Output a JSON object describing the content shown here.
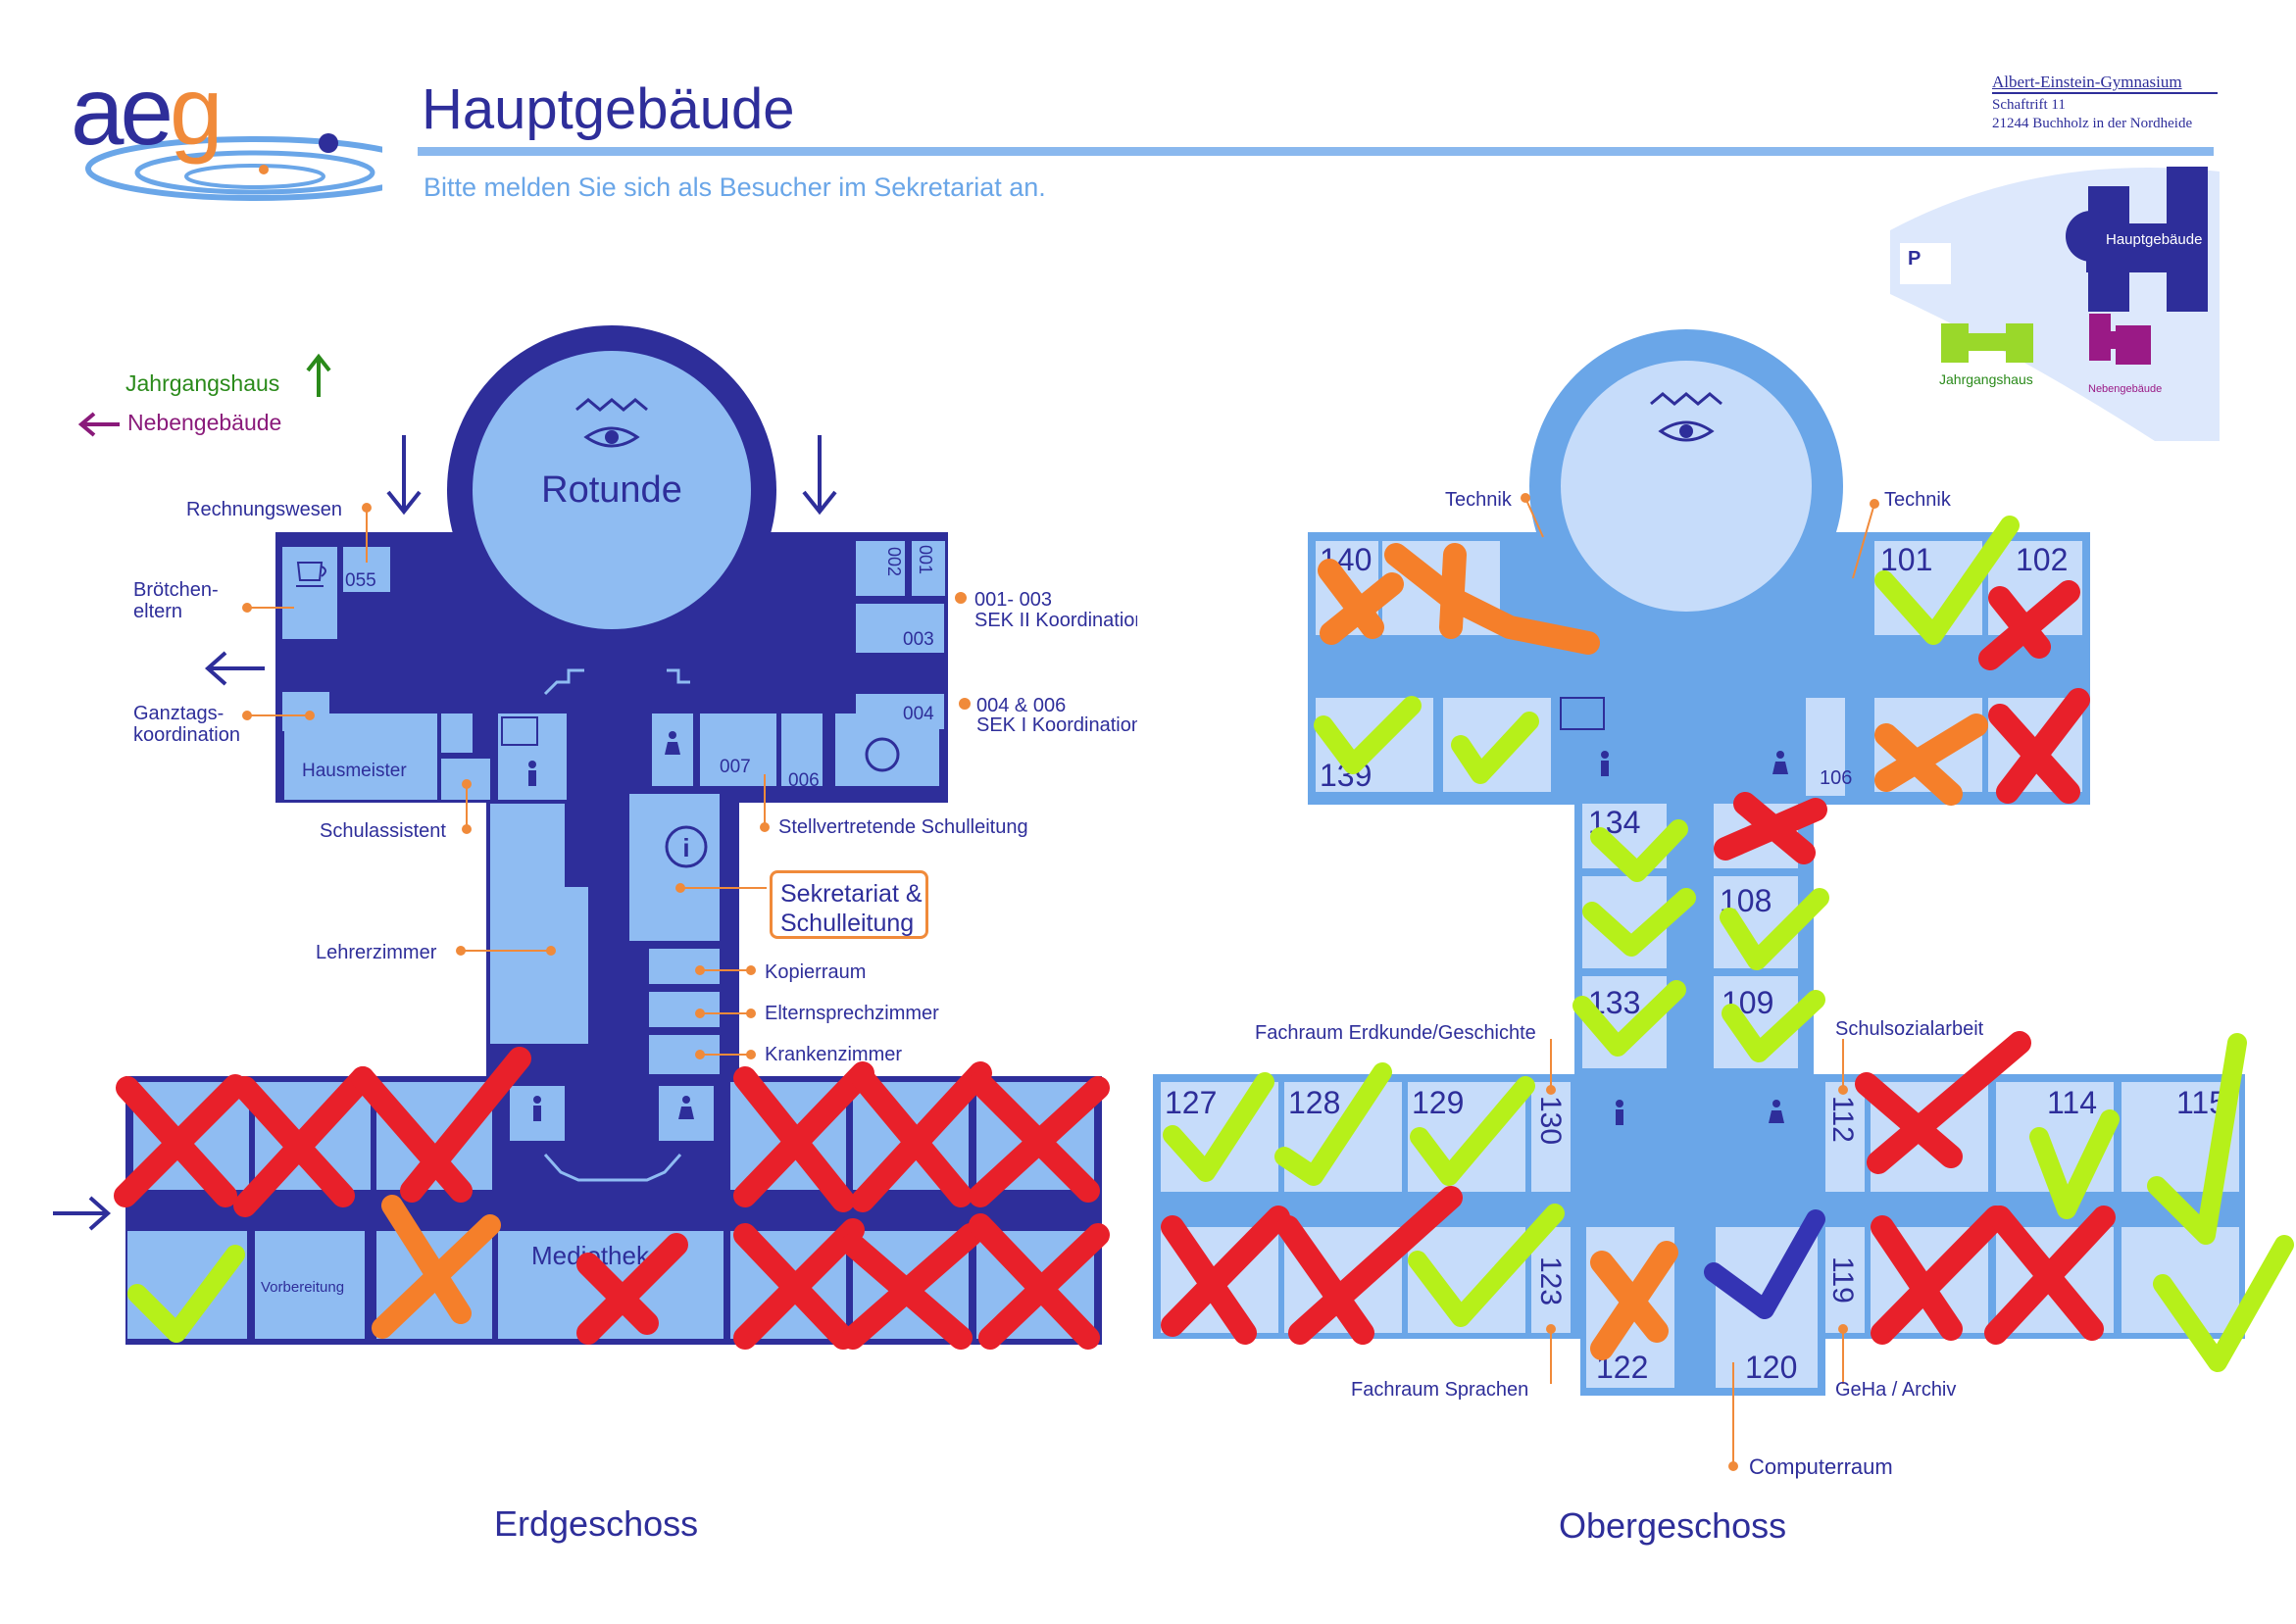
{
  "header": {
    "logo_text": "aeg",
    "title": "Hauptgebäude",
    "subtitle": "Bitte melden Sie sich als Besucher im Sekretariat an."
  },
  "school": {
    "name": "Albert-Einstein-Gymnasium",
    "street": "Schaftrift 11",
    "city": "21244 Buchholz in der Nordheide"
  },
  "overview_map": {
    "parking": "P",
    "main": "Hauptgebäude",
    "jahrgang": "Jahrgangshaus",
    "neben": "Nebengebäude"
  },
  "legend": {
    "jahrgangshaus": "Jahrgangshaus",
    "nebengebaeude": "Nebengebäude"
  },
  "erdgeschoss": {
    "name": "Erdgeschoss",
    "rotunde": "Rotunde",
    "labels": {
      "rechnungswesen": "Rechnungswesen",
      "broetchen_1": "Brötchen-",
      "broetchen_2": "eltern",
      "ganztags_1": "Ganztags-",
      "ganztags_2": "koordination",
      "hausmeister": "Hausmeister",
      "schulassistent": "Schulassistent",
      "lehrerzimmer": "Lehrerzimmer",
      "koord_sek2_1": "001- 003",
      "koord_sek2_2": "SEK II Koordination",
      "koord_sek1_1": "004 & 006",
      "koord_sek1_2": "SEK I Koordination",
      "stellv": "Stellvertretende Schulleitung",
      "sekretariat_1": "Sekretariat &",
      "sekretariat_2": "Schulleitung",
      "kopierraum": "Kopierraum",
      "elternsprechzimmer": "Elternsprechzimmer",
      "krankenzimmer": "Krankenzimmer",
      "vorbereitung": "Vorbereitung",
      "mediothek": "Mediothek"
    },
    "rooms": {
      "r055": "055",
      "r001": "001",
      "r002": "002",
      "r003": "003",
      "r004": "004",
      "r006": "006",
      "r007": "007"
    }
  },
  "obergeschoss": {
    "name": "Obergeschoss",
    "labels": {
      "technik_left": "Technik",
      "technik_right": "Technik",
      "fachraum_erdkunde": "Fachraum Erdkunde/Geschichte",
      "schulsozialarbeit": "Schulsozialarbeit",
      "fachraum_sprachen": "Fachraum Sprachen",
      "geha_archiv": "GeHa / Archiv",
      "computerraum": "Computerraum"
    },
    "rooms": {
      "r140": "140",
      "r101": "101",
      "r102": "102",
      "r139": "139",
      "r106": "106",
      "r134": "134",
      "r108": "108",
      "r133": "133",
      "r109": "109",
      "r127": "127",
      "r128": "128",
      "r129": "129",
      "r130": "130",
      "r112": "112",
      "r114": "114",
      "r115": "115",
      "r123": "123",
      "r122": "122",
      "r120": "120",
      "r119": "119"
    }
  },
  "colors": {
    "dark_blue": "#2e2e9a",
    "mid_blue": "#6aa6e8",
    "light_blue": "#8fbcf2",
    "pale_blue": "#c6dcfa",
    "orange": "#f08a3a",
    "mark_red": "#e8202a",
    "mark_green": "#b6f01a",
    "mark_orange": "#f57f2a",
    "mark_blue": "#3434b4"
  }
}
